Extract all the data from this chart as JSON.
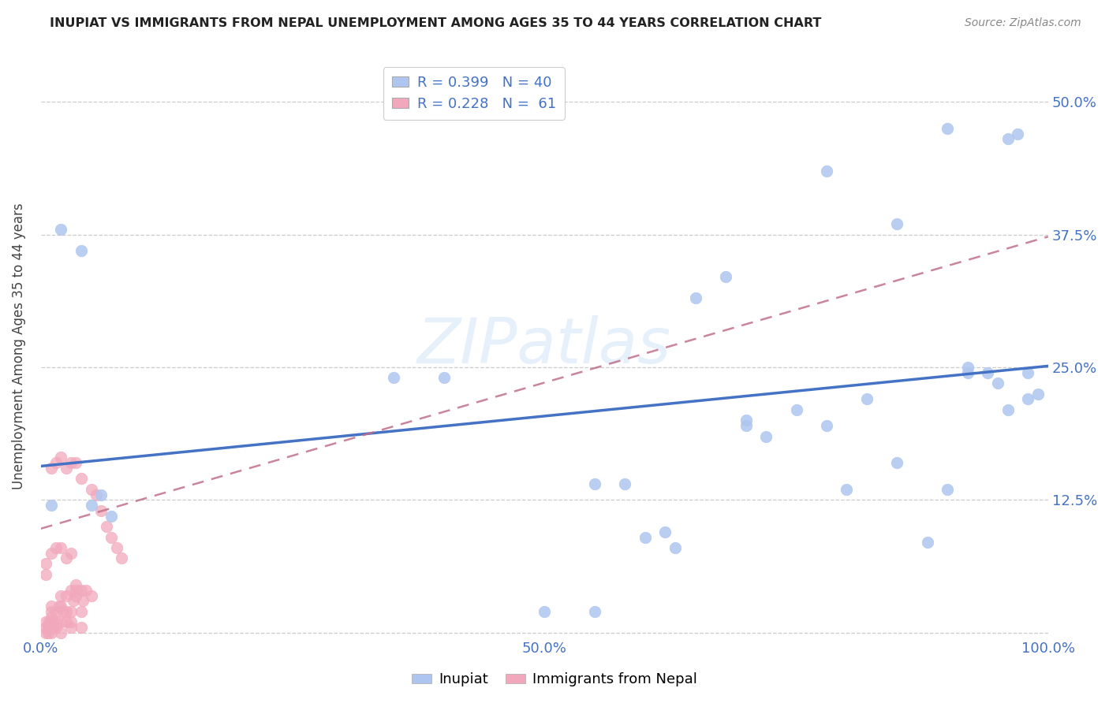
{
  "title": "INUPIAT VS IMMIGRANTS FROM NEPAL UNEMPLOYMENT AMONG AGES 35 TO 44 YEARS CORRELATION CHART",
  "source": "Source: ZipAtlas.com",
  "ylabel": "Unemployment Among Ages 35 to 44 years",
  "xlim": [
    0.0,
    1.0
  ],
  "ylim": [
    -0.005,
    0.545
  ],
  "xticks": [
    0.0,
    0.25,
    0.5,
    0.75,
    1.0
  ],
  "xtick_labels": [
    "0.0%",
    "",
    "50.0%",
    "",
    "100.0%"
  ],
  "yticks": [
    0.0,
    0.125,
    0.25,
    0.375,
    0.5
  ],
  "ytick_labels_right": [
    "",
    "12.5%",
    "25.0%",
    "37.5%",
    "50.0%"
  ],
  "legend_label_1": "R = 0.399   N = 40",
  "legend_label_2": "R = 0.228   N =  61",
  "inupiat_color": "#aec6ef",
  "nepal_color": "#f2a8bc",
  "inupiat_line_color": "#4472c4",
  "nepal_line_color": "#c0708a",
  "watermark": "ZIPatlas",
  "inupiat_x": [
    0.01,
    0.02,
    0.04,
    0.05,
    0.06,
    0.07,
    0.5,
    0.55,
    0.58,
    0.6,
    0.62,
    0.65,
    0.68,
    0.7,
    0.72,
    0.75,
    0.78,
    0.8,
    0.82,
    0.85,
    0.88,
    0.9,
    0.92,
    0.94,
    0.96,
    0.97,
    0.98,
    0.99,
    0.35,
    0.4,
    0.55,
    0.63,
    0.7,
    0.78,
    0.85,
    0.9,
    0.92,
    0.95,
    0.96,
    0.98
  ],
  "inupiat_y": [
    0.12,
    0.38,
    0.36,
    0.12,
    0.13,
    0.11,
    0.02,
    0.02,
    0.14,
    0.09,
    0.095,
    0.315,
    0.335,
    0.2,
    0.185,
    0.21,
    0.195,
    0.135,
    0.22,
    0.16,
    0.085,
    0.135,
    0.245,
    0.245,
    0.465,
    0.47,
    0.245,
    0.225,
    0.24,
    0.24,
    0.14,
    0.08,
    0.195,
    0.435,
    0.385,
    0.475,
    0.25,
    0.235,
    0.21,
    0.22
  ],
  "nepal_x": [
    0.005,
    0.005,
    0.005,
    0.007,
    0.007,
    0.008,
    0.01,
    0.01,
    0.01,
    0.01,
    0.01,
    0.01,
    0.012,
    0.013,
    0.015,
    0.015,
    0.015,
    0.018,
    0.02,
    0.02,
    0.02,
    0.02,
    0.022,
    0.025,
    0.025,
    0.025,
    0.03,
    0.03,
    0.03,
    0.03,
    0.032,
    0.035,
    0.035,
    0.035,
    0.04,
    0.04,
    0.04,
    0.042,
    0.045,
    0.05,
    0.01,
    0.015,
    0.02,
    0.025,
    0.03,
    0.035,
    0.04,
    0.05,
    0.055,
    0.06,
    0.065,
    0.07,
    0.075,
    0.08,
    0.005,
    0.005,
    0.01,
    0.015,
    0.02,
    0.025,
    0.03
  ],
  "nepal_y": [
    0.0,
    0.005,
    0.01,
    0.0,
    0.005,
    0.01,
    0.0,
    0.005,
    0.01,
    0.015,
    0.02,
    0.025,
    0.01,
    0.005,
    0.005,
    0.01,
    0.02,
    0.025,
    0.0,
    0.01,
    0.025,
    0.035,
    0.02,
    0.01,
    0.02,
    0.035,
    0.005,
    0.01,
    0.02,
    0.04,
    0.03,
    0.035,
    0.04,
    0.045,
    0.005,
    0.02,
    0.04,
    0.03,
    0.04,
    0.035,
    0.155,
    0.16,
    0.165,
    0.155,
    0.16,
    0.16,
    0.145,
    0.135,
    0.13,
    0.115,
    0.1,
    0.09,
    0.08,
    0.07,
    0.055,
    0.065,
    0.075,
    0.08,
    0.08,
    0.07,
    0.075
  ]
}
